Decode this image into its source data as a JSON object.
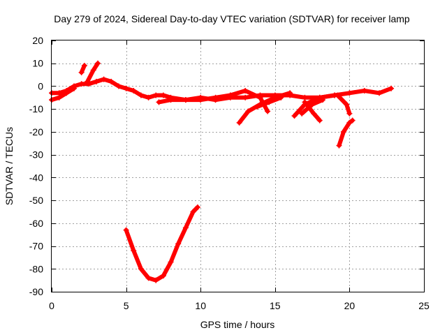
{
  "chart_data": {
    "type": "scatter",
    "title": "Day 279 of 2024, Sidereal Day-to-day VTEC variation (SDTVAR) for receiver lamp",
    "xlabel": "GPS time / hours",
    "ylabel": "SDTVAR / TECUs",
    "xlim": [
      0,
      25
    ],
    "ylim": [
      -90,
      20
    ],
    "xticks": [
      0,
      5,
      10,
      15,
      20,
      25
    ],
    "yticks": [
      20,
      10,
      0,
      -10,
      -20,
      -30,
      -40,
      -50,
      -60,
      -70,
      -80,
      -90
    ],
    "grid": true,
    "marker": "plus",
    "color": "#ff0000",
    "series": [
      {
        "name": "main-trace",
        "points": [
          [
            0,
            -3
          ],
          [
            0.5,
            -3
          ],
          [
            1,
            -2
          ],
          [
            1.5,
            0
          ],
          [
            2,
            1
          ],
          [
            2.5,
            1
          ],
          [
            3,
            2
          ],
          [
            3.5,
            3
          ],
          [
            4,
            2
          ],
          [
            4.5,
            0
          ],
          [
            5,
            -1
          ],
          [
            5.5,
            -2
          ],
          [
            6,
            -4
          ],
          [
            6.5,
            -5
          ],
          [
            7,
            -4
          ],
          [
            7.5,
            -4
          ],
          [
            8,
            -5
          ],
          [
            9,
            -6
          ],
          [
            10,
            -5
          ],
          [
            11,
            -6
          ],
          [
            12,
            -5
          ],
          [
            13,
            -5
          ],
          [
            14,
            -4
          ],
          [
            15,
            -4
          ],
          [
            16,
            -4
          ],
          [
            17,
            -5
          ],
          [
            18,
            -5
          ],
          [
            19,
            -4
          ],
          [
            20,
            -3
          ],
          [
            21,
            -2
          ],
          [
            22,
            -3
          ],
          [
            22.8,
            -1
          ]
        ]
      },
      {
        "name": "early-segment",
        "points": [
          [
            0,
            -6
          ],
          [
            0.5,
            -5
          ],
          [
            1,
            -3
          ],
          [
            1.5,
            -1
          ]
        ]
      },
      {
        "name": "spike-3h",
        "points": [
          [
            2.4,
            2
          ],
          [
            2.8,
            7
          ],
          [
            3.1,
            10
          ]
        ]
      },
      {
        "name": "spike-2h",
        "points": [
          [
            2,
            6
          ],
          [
            2.2,
            9
          ]
        ]
      },
      {
        "name": "flat-7-12",
        "points": [
          [
            7.2,
            -7
          ],
          [
            8,
            -6
          ],
          [
            9,
            -6
          ],
          [
            10,
            -6
          ],
          [
            11,
            -5
          ],
          [
            12,
            -4
          ]
        ]
      },
      {
        "name": "hump-12-14",
        "points": [
          [
            11,
            -6
          ],
          [
            12,
            -4
          ],
          [
            13,
            -2
          ],
          [
            14,
            -5
          ],
          [
            14.5,
            -11
          ]
        ]
      },
      {
        "name": "fall-12-15",
        "points": [
          [
            12.6,
            -16
          ],
          [
            13.2,
            -11
          ],
          [
            14,
            -8
          ],
          [
            15,
            -5
          ],
          [
            16,
            -3
          ]
        ]
      },
      {
        "name": "fall-14-16",
        "points": [
          [
            13.8,
            -9
          ],
          [
            14.6,
            -7
          ],
          [
            15.4,
            -5
          ]
        ]
      },
      {
        "name": "arc-16-19",
        "points": [
          [
            16.3,
            -13
          ],
          [
            17,
            -8
          ],
          [
            18,
            -5
          ],
          [
            19,
            -4
          ]
        ]
      },
      {
        "name": "arc-16-18",
        "points": [
          [
            16.8,
            -12
          ],
          [
            17.5,
            -8
          ],
          [
            18.2,
            -6
          ]
        ]
      },
      {
        "name": "drop-17-18",
        "points": [
          [
            17,
            -7
          ],
          [
            17.6,
            -12
          ],
          [
            18,
            -15
          ]
        ]
      },
      {
        "name": "dip-19-20",
        "points": [
          [
            19.2,
            -4
          ],
          [
            19.8,
            -8
          ],
          [
            20,
            -12
          ]
        ]
      },
      {
        "name": "recovery-19-20",
        "points": [
          [
            19.3,
            -26
          ],
          [
            19.6,
            -20
          ],
          [
            20,
            -16
          ],
          [
            20.2,
            -15
          ]
        ]
      },
      {
        "name": "deep-dip",
        "points": [
          [
            5.0,
            -63
          ],
          [
            5.5,
            -72
          ],
          [
            6,
            -80
          ],
          [
            6.5,
            -84
          ],
          [
            7,
            -85
          ],
          [
            7.5,
            -83
          ],
          [
            8,
            -77
          ],
          [
            8.5,
            -69
          ],
          [
            9,
            -62
          ],
          [
            9.5,
            -55
          ],
          [
            9.8,
            -53
          ]
        ]
      }
    ]
  }
}
